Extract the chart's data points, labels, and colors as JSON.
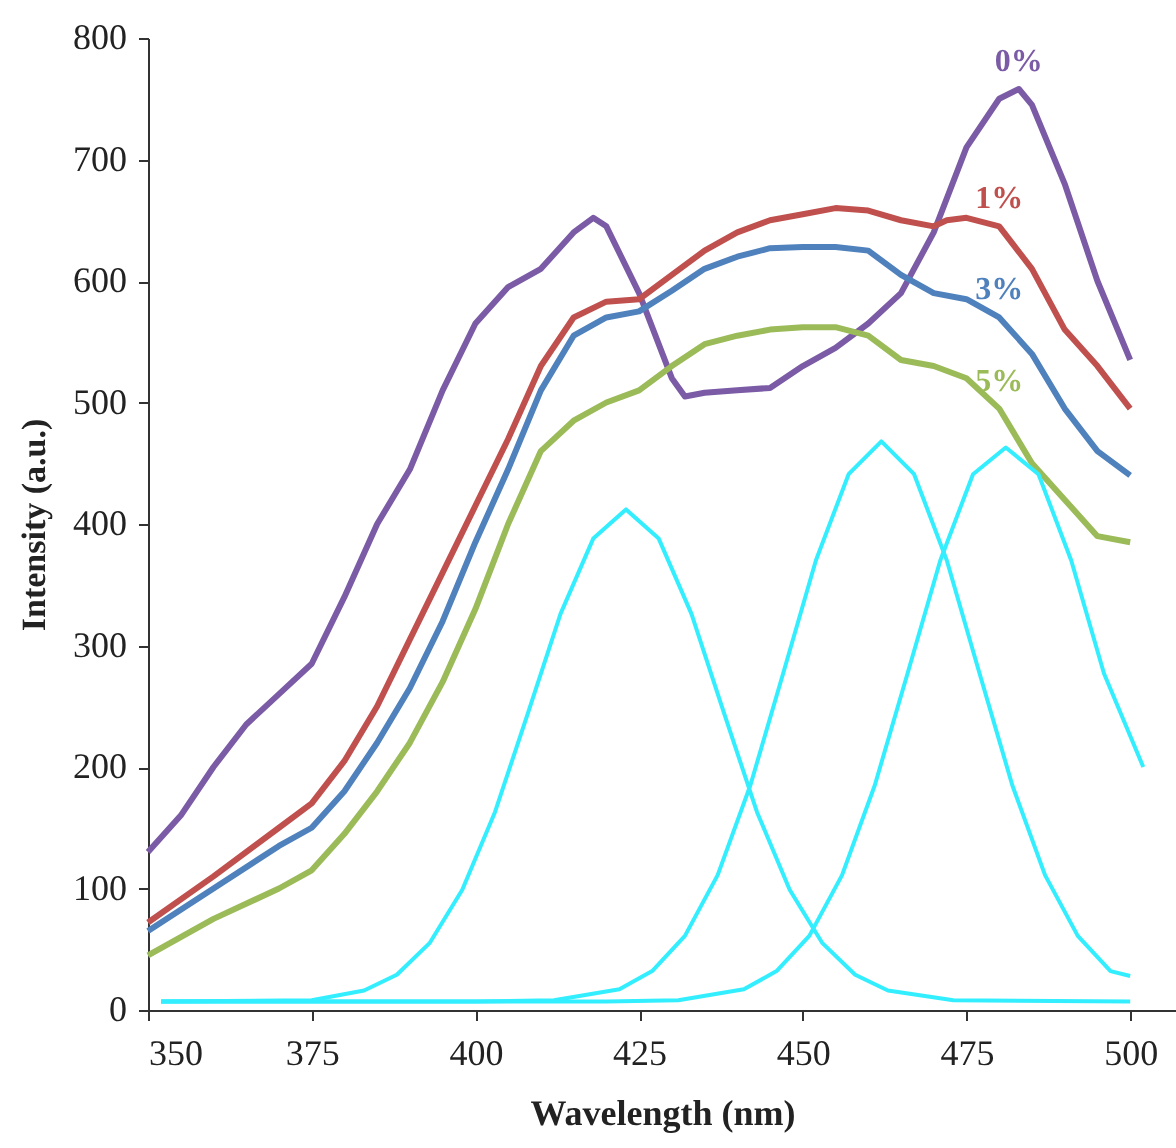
{
  "chart_data": {
    "type": "line",
    "xlabel": "Wavelength (nm)",
    "ylabel": "Intensity (a.u.)",
    "xlim": [
      350,
      507
    ],
    "xticks": [
      350,
      375,
      400,
      425,
      450,
      475,
      500
    ],
    "ylim": [
      0,
      800
    ],
    "yticks": [
      0,
      100,
      200,
      300,
      400,
      500,
      600,
      700,
      800
    ],
    "grid": false,
    "marker": "none",
    "line_style": "solid",
    "series": [
      {
        "name": "0%",
        "color": "#7b5ba6",
        "x": [
          350,
          355,
          360,
          365,
          370,
          375,
          380,
          385,
          390,
          395,
          400,
          405,
          410,
          415,
          418,
          420,
          425,
          430,
          432,
          435,
          440,
          445,
          450,
          455,
          460,
          465,
          470,
          475,
          480,
          483,
          485,
          490,
          495,
          500
        ],
        "values": [
          130,
          160,
          200,
          235,
          260,
          285,
          340,
          400,
          445,
          510,
          565,
          595,
          610,
          640,
          652,
          645,
          590,
          520,
          505,
          508,
          510,
          512,
          530,
          545,
          565,
          590,
          640,
          710,
          750,
          758,
          745,
          680,
          600,
          535
        ]
      },
      {
        "name": "1%",
        "color": "#c0504d",
        "x": [
          350,
          360,
          370,
          375,
          380,
          385,
          390,
          395,
          400,
          405,
          410,
          415,
          420,
          425,
          430,
          435,
          440,
          445,
          450,
          455,
          460,
          465,
          470,
          472,
          475,
          480,
          485,
          490,
          495,
          500
        ],
        "values": [
          72,
          110,
          150,
          170,
          205,
          250,
          305,
          360,
          415,
          470,
          530,
          570,
          583,
          585,
          605,
          625,
          640,
          650,
          655,
          660,
          658,
          650,
          645,
          650,
          652,
          645,
          610,
          560,
          530,
          495
        ]
      },
      {
        "name": "3%",
        "color": "#4f81bd",
        "x": [
          350,
          360,
          370,
          375,
          380,
          385,
          390,
          395,
          400,
          405,
          410,
          415,
          420,
          425,
          430,
          435,
          440,
          445,
          450,
          455,
          460,
          465,
          470,
          475,
          480,
          485,
          490,
          495,
          500
        ],
        "values": [
          65,
          100,
          135,
          150,
          180,
          220,
          265,
          320,
          385,
          445,
          510,
          555,
          570,
          575,
          592,
          610,
          620,
          627,
          628,
          628,
          625,
          605,
          590,
          585,
          570,
          540,
          495,
          460,
          440
        ]
      },
      {
        "name": "5%",
        "color": "#9bbb59",
        "x": [
          350,
          360,
          370,
          375,
          380,
          385,
          390,
          395,
          400,
          405,
          410,
          415,
          420,
          425,
          430,
          435,
          440,
          445,
          450,
          455,
          460,
          465,
          470,
          475,
          480,
          485,
          490,
          495,
          500
        ],
        "values": [
          45,
          75,
          100,
          115,
          145,
          180,
          220,
          270,
          330,
          400,
          460,
          485,
          500,
          510,
          530,
          548,
          555,
          560,
          562,
          562,
          555,
          535,
          530,
          520,
          495,
          450,
          420,
          390,
          385
        ]
      },
      {
        "color": "#33eeff",
        "x": [
          352,
          375,
          383,
          388,
          393,
          398,
          403,
          408,
          413,
          418,
          423,
          428,
          433,
          438,
          443,
          448,
          453,
          458,
          463,
          473,
          500
        ],
        "values": [
          7,
          8,
          16,
          29,
          55,
          99,
          163,
          244,
          326,
          388,
          412,
          388,
          326,
          244,
          163,
          99,
          55,
          29,
          16,
          8,
          7
        ]
      },
      {
        "color": "#33eeff",
        "x": [
          352,
          400,
          412,
          422,
          427,
          432,
          437,
          442,
          447,
          452,
          457,
          462,
          467,
          472,
          477,
          482,
          487,
          492,
          497,
          500
        ],
        "values": [
          7,
          7,
          8,
          17,
          32,
          61,
          111,
          185,
          277,
          370,
          441,
          468,
          441,
          370,
          277,
          185,
          111,
          61,
          32,
          28
        ]
      },
      {
        "color": "#33eeff",
        "x": [
          352,
          420,
          431,
          441,
          446,
          451,
          456,
          461,
          466,
          471,
          476,
          481,
          486,
          491,
          496,
          502
        ],
        "values": [
          7,
          7,
          8,
          17,
          32,
          61,
          111,
          185,
          277,
          370,
          441,
          463,
          441,
          370,
          277,
          200
        ]
      }
    ]
  }
}
